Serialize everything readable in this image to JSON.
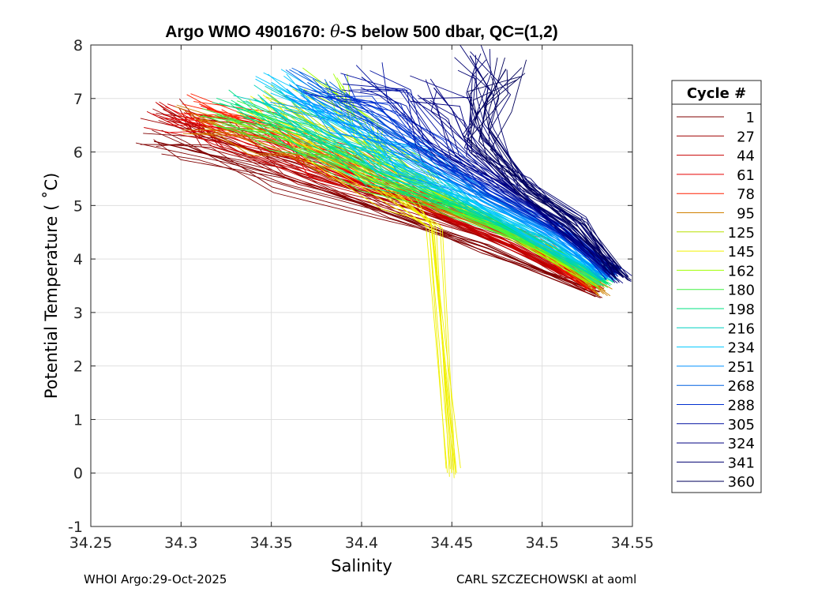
{
  "chart_data": {
    "type": "line",
    "title_prefix": "Argo WMO 4901670: ",
    "title_theta": "θ",
    "title_suffix": "-S below 500 dbar,  QC=(1,2)",
    "xlabel": "Salinity",
    "ylabel": "Potential Temperature ( ˚C)",
    "xlim": [
      34.25,
      34.55
    ],
    "ylim": [
      -1,
      8
    ],
    "xticks": [
      34.25,
      34.3,
      34.35,
      34.4,
      34.45,
      34.5,
      34.55
    ],
    "xtick_labels": [
      "34.25",
      "34.3",
      "34.35",
      "34.4",
      "34.45",
      "34.5",
      "34.55"
    ],
    "yticks": [
      -1,
      0,
      1,
      2,
      3,
      4,
      5,
      6,
      7,
      8
    ],
    "ytick_labels": [
      "-1",
      "0",
      "1",
      "2",
      "3",
      "4",
      "5",
      "6",
      "7",
      "8"
    ],
    "grid": true,
    "legend_title": "Cycle #",
    "legend_position": "right-outside",
    "series": [
      {
        "name": "1",
        "color": "#800000",
        "x": [
          34.285,
          34.31,
          34.36,
          34.42,
          34.47,
          34.53
        ],
        "y": [
          6.2,
          6.0,
          5.5,
          4.8,
          4.2,
          3.35
        ]
      },
      {
        "name": "27",
        "color": "#a00000",
        "x": [
          34.29,
          34.32,
          34.37,
          34.43,
          34.48,
          34.528
        ],
        "y": [
          6.8,
          6.3,
          5.6,
          4.9,
          4.3,
          3.4
        ]
      },
      {
        "name": "44",
        "color": "#c80000",
        "x": [
          34.29,
          34.33,
          34.38,
          34.43,
          34.48,
          34.53
        ],
        "y": [
          6.7,
          6.3,
          5.7,
          5.0,
          4.3,
          3.45
        ]
      },
      {
        "name": "61",
        "color": "#e80000",
        "x": [
          34.3,
          34.34,
          34.38,
          34.44,
          34.49,
          34.53
        ],
        "y": [
          6.6,
          6.3,
          5.8,
          5.0,
          4.4,
          3.5
        ]
      },
      {
        "name": "78",
        "color": "#ff2000",
        "x": [
          34.31,
          34.34,
          34.39,
          34.44,
          34.49,
          34.53
        ],
        "y": [
          6.9,
          6.5,
          5.8,
          5.1,
          4.4,
          3.5
        ]
      },
      {
        "name": "95",
        "color": "#d08000",
        "x": [
          34.31,
          34.35,
          34.39,
          34.44,
          34.5,
          34.535
        ],
        "y": [
          6.6,
          6.2,
          5.7,
          5.0,
          4.3,
          3.4
        ]
      },
      {
        "name": "125",
        "color": "#b8e000",
        "x": [
          34.35,
          34.38,
          34.42,
          34.46,
          34.5,
          34.532
        ],
        "y": [
          7.0,
          6.4,
          5.6,
          4.9,
          4.2,
          3.5
        ]
      },
      {
        "name": "145",
        "color": "#f0f000",
        "x": [
          34.34,
          34.38,
          34.42,
          34.44,
          34.45
        ],
        "y": [
          6.8,
          6.0,
          5.2,
          4.6,
          0.0
        ]
      },
      {
        "name": "162",
        "color": "#a0ff00",
        "x": [
          34.38,
          34.4,
          34.42,
          34.45,
          34.49,
          34.53
        ],
        "y": [
          7.3,
          6.5,
          5.7,
          5.0,
          4.3,
          3.55
        ]
      },
      {
        "name": "180",
        "color": "#40f040",
        "x": [
          34.32,
          34.36,
          34.41,
          34.45,
          34.5,
          34.535
        ],
        "y": [
          6.7,
          6.2,
          5.5,
          4.9,
          4.2,
          3.55
        ]
      },
      {
        "name": "198",
        "color": "#00e080",
        "x": [
          34.33,
          34.37,
          34.41,
          34.46,
          34.5,
          34.535
        ],
        "y": [
          6.9,
          6.3,
          5.6,
          4.9,
          4.3,
          3.6
        ]
      },
      {
        "name": "216",
        "color": "#00d0c0",
        "x": [
          34.34,
          34.38,
          34.42,
          34.46,
          34.5,
          34.535
        ],
        "y": [
          7.0,
          6.4,
          5.7,
          5.0,
          4.3,
          3.6
        ]
      },
      {
        "name": "234",
        "color": "#00c8ff",
        "x": [
          34.35,
          34.39,
          34.42,
          34.46,
          34.5,
          34.537
        ],
        "y": [
          7.3,
          6.5,
          5.8,
          5.1,
          4.4,
          3.7
        ]
      },
      {
        "name": "251",
        "color": "#0090ff",
        "x": [
          34.36,
          34.39,
          34.43,
          34.47,
          34.51,
          34.537
        ],
        "y": [
          7.0,
          6.5,
          5.8,
          5.1,
          4.4,
          3.7
        ]
      },
      {
        "name": "268",
        "color": "#0060e0",
        "x": [
          34.37,
          34.4,
          34.43,
          34.47,
          34.51,
          34.54
        ],
        "y": [
          7.3,
          6.7,
          5.9,
          5.2,
          4.5,
          3.75
        ]
      },
      {
        "name": "288",
        "color": "#0030d0",
        "x": [
          34.38,
          34.41,
          34.44,
          34.47,
          34.51,
          34.54
        ],
        "y": [
          7.2,
          6.8,
          6.0,
          5.3,
          4.5,
          3.7
        ]
      },
      {
        "name": "305",
        "color": "#0010a0",
        "x": [
          34.4,
          34.42,
          34.44,
          34.48,
          34.51,
          34.54
        ],
        "y": [
          7.4,
          6.9,
          6.1,
          5.3,
          4.6,
          3.75
        ]
      },
      {
        "name": "324",
        "color": "#000080",
        "x": [
          34.44,
          34.45,
          34.46,
          34.48,
          34.51,
          34.545
        ],
        "y": [
          7.2,
          6.8,
          6.0,
          5.4,
          4.6,
          3.65
        ]
      },
      {
        "name": "341",
        "color": "#000070",
        "x": [
          34.46,
          34.47,
          34.466,
          34.49,
          34.52,
          34.54
        ],
        "y": [
          7.8,
          7.2,
          6.3,
          5.4,
          4.7,
          3.8
        ]
      },
      {
        "name": "360",
        "color": "#00005a",
        "x": [
          34.48,
          34.47,
          34.465,
          34.49,
          34.52,
          34.545
        ],
        "y": [
          7.55,
          7.0,
          6.2,
          5.3,
          4.6,
          3.65
        ]
      }
    ]
  },
  "footer": {
    "left": "WHOI Argo:29-Oct-2025",
    "right": "CARL SZCZECHOWSKI at aoml"
  }
}
